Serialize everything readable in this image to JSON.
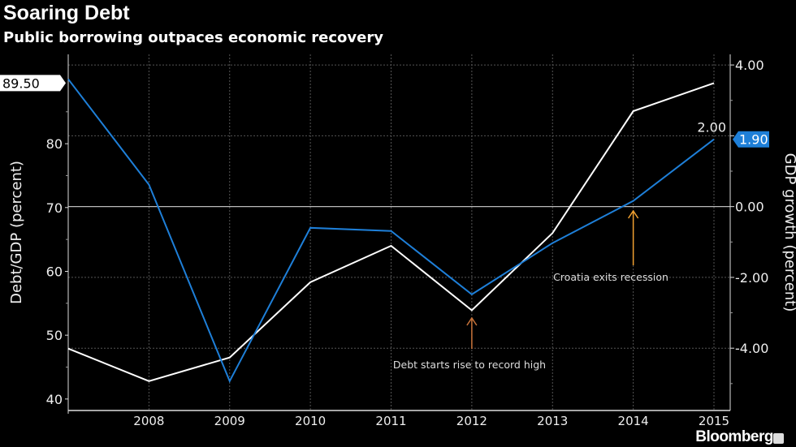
{
  "header": {
    "title": "Soaring Debt",
    "subtitle": "Public borrowing outpaces economic recovery"
  },
  "branding": {
    "name": "Bloomberg"
  },
  "chart_data": {
    "type": "line",
    "x": [
      "2007",
      "2008",
      "2009",
      "2010",
      "2011",
      "2012",
      "2013",
      "2014",
      "2015"
    ],
    "x_tick_labels": [
      "2008",
      "2009",
      "2010",
      "2011",
      "2012",
      "2013",
      "2014",
      "2015"
    ],
    "series": [
      {
        "axis": "left",
        "color": "#ffffff",
        "values": [
          47.9,
          42.8,
          46.5,
          58.3,
          64.0,
          53.9,
          66.0,
          85.1,
          89.5
        ],
        "last_value_label": "89.50"
      },
      {
        "axis": "right",
        "color": "#1e7fd8",
        "values": [
          3.6,
          0.62,
          -4.93,
          -0.6,
          -0.69,
          -2.48,
          -1.03,
          0.16,
          1.9
        ],
        "last_value_label": "1.90"
      }
    ],
    "left_axis": {
      "label": "Debt/GDP (percent)",
      "ylim": [
        38.2,
        94
      ],
      "ticks": [
        "40",
        "50",
        "60",
        "70",
        "80"
      ],
      "tick_values": [
        40,
        50,
        60,
        70,
        80
      ]
    },
    "right_axis": {
      "label": "GDP growth (percent)",
      "ylim": [
        -5.76,
        4.3
      ],
      "ticks": [
        "4.00",
        "2.00",
        "0.00",
        "-2.00",
        "-4.00"
      ],
      "tick_values": [
        4,
        2,
        0,
        -2,
        -4
      ]
    },
    "grid": "dotted",
    "annotations": [
      {
        "text": "Debt starts rise to record high",
        "x": "2012",
        "color": "#c8733a"
      },
      {
        "text": "Croatia exits recession",
        "x": "2014",
        "color": "#f0a030"
      }
    ]
  }
}
